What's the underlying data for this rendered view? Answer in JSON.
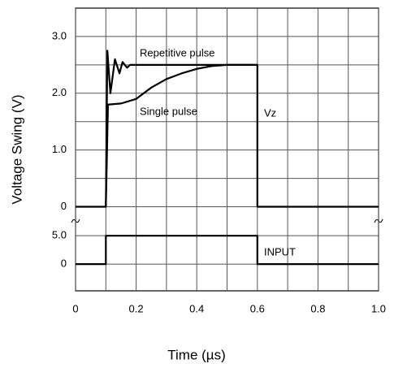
{
  "chart_data": [
    {
      "type": "line",
      "ylabel": "Voltage Swing (V)",
      "ylim": [
        -0.25,
        3.5
      ],
      "yticks": [
        0,
        {
          "value": 1,
          "label": "1.0"
        },
        {
          "value": 2,
          "label": "2.0"
        },
        {
          "value": 3,
          "label": "3.0"
        }
      ],
      "minor_yticks": [
        0.5,
        1.5,
        2.5
      ],
      "grid": true,
      "annotations": [
        "Vz"
      ],
      "series": [
        {
          "name": "Repetitive pulse",
          "color": "#000000",
          "x": [
            0,
            0.1,
            0.105,
            0.115,
            0.13,
            0.145,
            0.155,
            0.17,
            0.18,
            0.6,
            0.6,
            1.0
          ],
          "values": [
            0,
            0,
            2.75,
            2.0,
            2.6,
            2.35,
            2.55,
            2.45,
            2.5,
            2.5,
            0,
            0
          ]
        },
        {
          "name": "Single pulse",
          "color": "#000000",
          "x": [
            0.1,
            0.107,
            0.15,
            0.2,
            0.25,
            0.3,
            0.35,
            0.4,
            0.45,
            0.5,
            0.6
          ],
          "values": [
            0,
            1.8,
            1.82,
            1.9,
            2.1,
            2.25,
            2.35,
            2.43,
            2.48,
            2.5,
            2.5
          ]
        }
      ]
    },
    {
      "type": "line",
      "xlabel": "Time (µs)",
      "xlim": [
        0,
        1
      ],
      "xticks": [
        0,
        0.2,
        0.4,
        0.6,
        0.8,
        {
          "value": 1,
          "label": "1.0"
        }
      ],
      "minor_xticks": [
        0.1,
        0.3,
        0.5,
        0.7,
        0.9
      ],
      "ylim": [
        -4.7,
        7.6
      ],
      "yticks": [
        0,
        {
          "value": 5,
          "label": "5.0"
        }
      ],
      "grid": true,
      "annotations": [
        "INPUT"
      ],
      "series": [
        {
          "name": "INPUT",
          "color": "#000000",
          "x": [
            0,
            0.1,
            0.1,
            0.6,
            0.6,
            1.0
          ],
          "values": [
            0,
            0,
            5,
            5,
            0,
            0
          ]
        }
      ]
    }
  ]
}
